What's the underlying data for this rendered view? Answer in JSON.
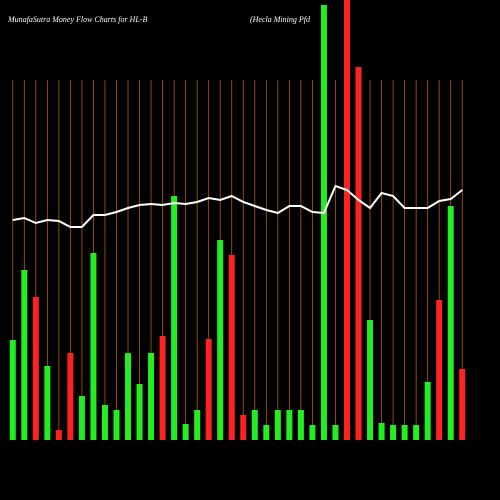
{
  "chart_data": {
    "type": "bar",
    "title": "MunafaSutra  Money Flow  Charts for HL-B",
    "subtitle": "(Hecla  Mining Pfd",
    "categories": [
      null,
      null,
      null,
      null,
      null,
      null,
      null,
      null,
      null,
      null,
      null,
      null,
      null,
      null,
      null,
      null,
      null,
      null,
      null,
      null,
      null,
      null,
      null,
      null,
      null,
      null,
      null,
      null,
      null,
      null,
      null,
      null,
      null,
      null,
      null,
      null,
      null,
      null,
      null,
      null
    ],
    "values": [
      100,
      170,
      143,
      74,
      10,
      87,
      44,
      187,
      35,
      30,
      87,
      56,
      87,
      104,
      244,
      16,
      30,
      101,
      200,
      185,
      25,
      30,
      15,
      30,
      30,
      30,
      15,
      435,
      15,
      440,
      373,
      120,
      17,
      15,
      15,
      15,
      58,
      140,
      234,
      71
    ],
    "colors": [
      "#22ee22",
      "#22ee22",
      "#ff2222",
      "#22ee22",
      "#ff2222",
      "#ff2222",
      "#22ee22",
      "#22ee22",
      "#22ee22",
      "#22ee22",
      "#22ee22",
      "#22ee22",
      "#22ee22",
      "#ff2222",
      "#22ee22",
      "#22ee22",
      "#22ee22",
      "#ff2222",
      "#22ee22",
      "#ff2222",
      "#ff2222",
      "#22ee22",
      "#22ee22",
      "#22ee22",
      "#22ee22",
      "#22ee22",
      "#22ee22",
      "#22ee22",
      "#22ee22",
      "#ff2222",
      "#ff2222",
      "#22ee22",
      "#22ee22",
      "#22ee22",
      "#22ee22",
      "#22ee22",
      "#22ee22",
      "#ff2222",
      "#22ee22",
      "#ff2222"
    ],
    "line": {
      "color": "#ffffff",
      "values": [
        220,
        222,
        217,
        220,
        219,
        213,
        213,
        225,
        225,
        228,
        232,
        235,
        236,
        235,
        237,
        236,
        238,
        242,
        240,
        244,
        238,
        234,
        230,
        227,
        234,
        234,
        228,
        227,
        254,
        250,
        240,
        232,
        247,
        244,
        232,
        232,
        232,
        239,
        241,
        250
      ]
    },
    "ylim": [
      0,
      440
    ],
    "grid": true,
    "grid_color": "#b35f00"
  }
}
